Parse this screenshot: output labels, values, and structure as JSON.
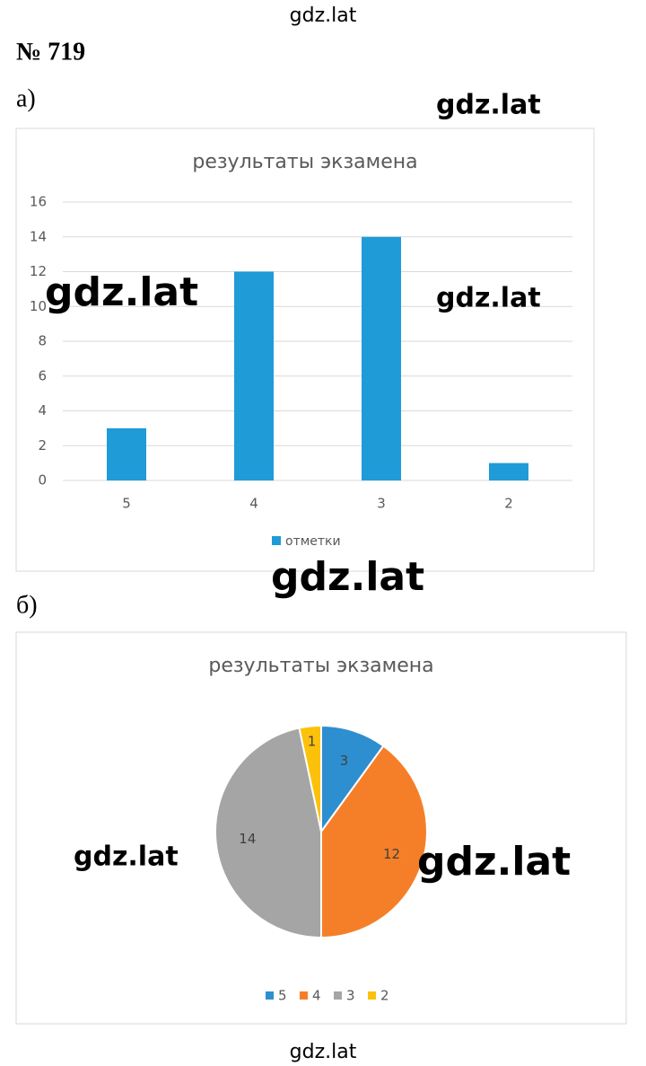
{
  "header": "gdz.lat",
  "problem": "№ 719",
  "part_labels": [
    "а)",
    "б)"
  ],
  "watermark": "gdz.lat",
  "footer": "gdz.lat",
  "chart_data": [
    {
      "type": "bar",
      "title": "результаты экзамена",
      "categories": [
        "5",
        "4",
        "3",
        "2"
      ],
      "series": [
        {
          "name": "отметки",
          "color": "#1f9bd7",
          "values": [
            3,
            12,
            14,
            1
          ]
        }
      ],
      "ylim": [
        0,
        16
      ],
      "yticks": [
        0,
        2,
        4,
        6,
        8,
        10,
        12,
        14,
        16
      ],
      "grid": true,
      "legend": "bottom"
    },
    {
      "type": "pie",
      "title": "результаты экзамена",
      "categories": [
        "5",
        "4",
        "3",
        "2"
      ],
      "values": [
        3,
        12,
        14,
        1
      ],
      "colors": [
        "#2e8fd0",
        "#f57f28",
        "#a5a5a5",
        "#fcc10a"
      ],
      "legend": "bottom"
    }
  ]
}
